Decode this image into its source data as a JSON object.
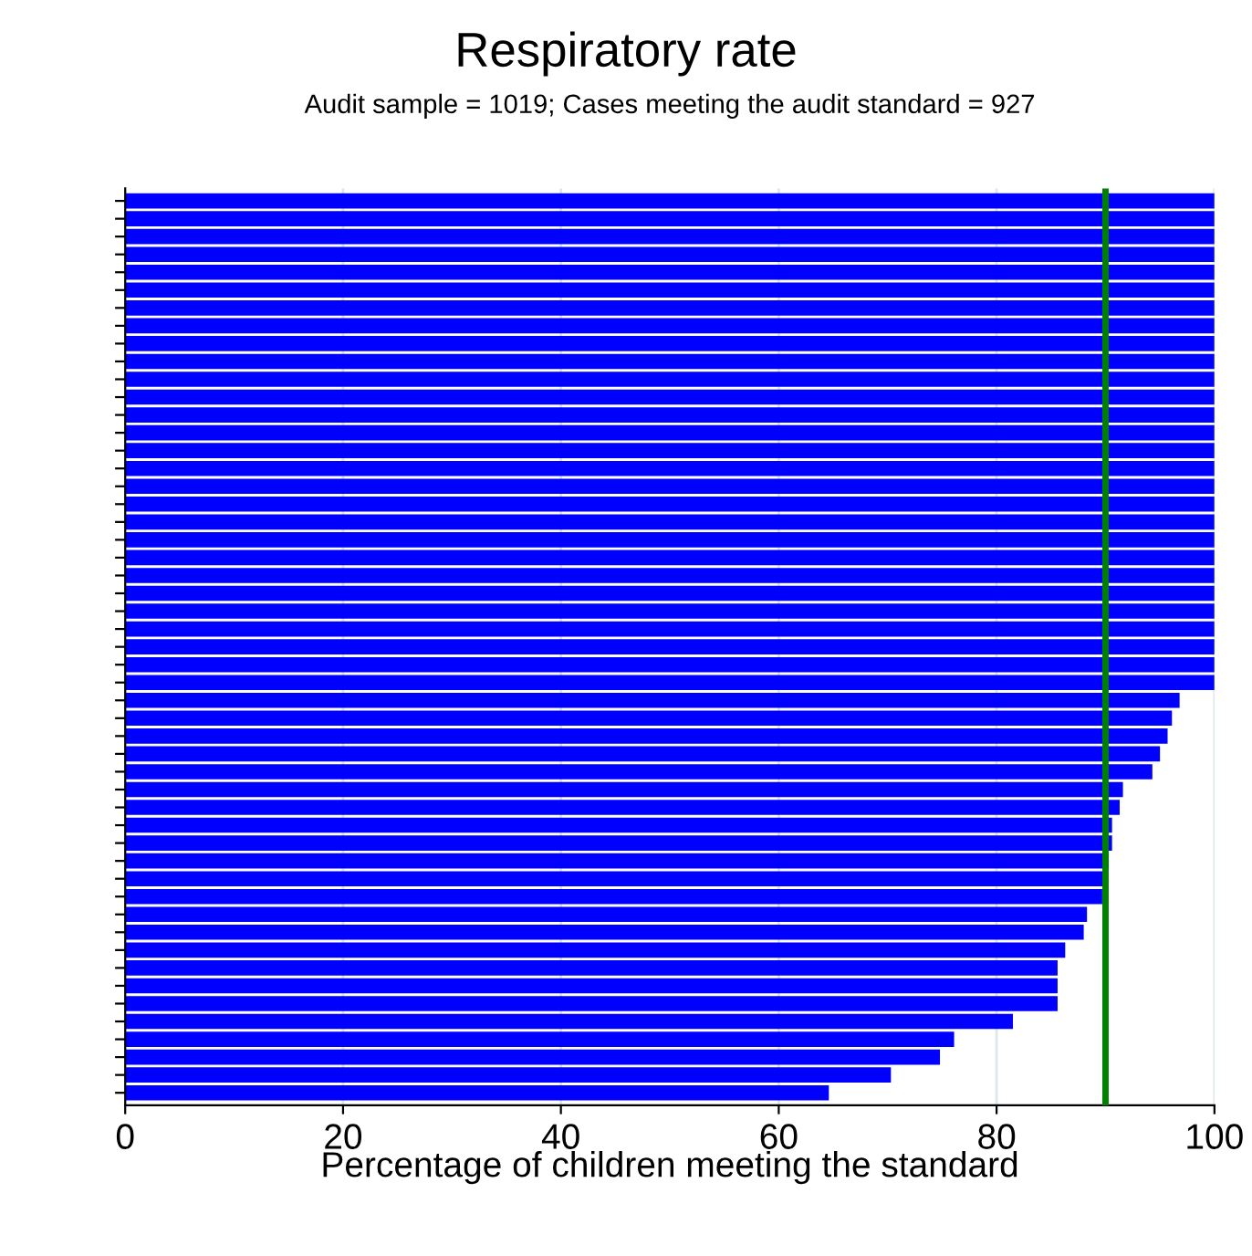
{
  "chart_data": {
    "type": "bar",
    "orientation": "horizontal",
    "title": "Respiratory rate",
    "subtitle": "Audit sample = 1019; Cases meeting the audit standard = 927",
    "xlabel": "Percentage of children meeting the standard",
    "categories": [
      null,
      null,
      null,
      null,
      null,
      null,
      null,
      null,
      null,
      null,
      null,
      null,
      null,
      null,
      null,
      null,
      null,
      null,
      null,
      null,
      null,
      null,
      null,
      null,
      null,
      null,
      null,
      null,
      null,
      null,
      null,
      null,
      null,
      null,
      null,
      null,
      null,
      null,
      null,
      null,
      null,
      null,
      null,
      null,
      null,
      null,
      null,
      null,
      null,
      null,
      null
    ],
    "values": [
      100,
      100,
      100,
      100,
      100,
      100,
      100,
      100,
      100,
      100,
      100,
      100,
      100,
      100,
      100,
      100,
      100,
      100,
      100,
      100,
      100,
      100,
      100,
      100,
      100,
      100,
      100,
      100,
      96.8,
      96.1,
      95.7,
      95.0,
      94.3,
      91.6,
      91.3,
      90.6,
      90.6,
      90.3,
      90.0,
      89.7,
      88.3,
      88.0,
      86.3,
      85.6,
      85.6,
      85.6,
      81.5,
      76.1,
      74.8,
      70.3,
      64.6
    ],
    "color": "#0000ff",
    "xlim": [
      0,
      100
    ],
    "xticks": [
      0,
      20,
      40,
      60,
      80,
      100
    ],
    "grid": "x",
    "ref_lines": [
      {
        "axis": "x",
        "value": 90,
        "color": "#008000"
      }
    ]
  }
}
